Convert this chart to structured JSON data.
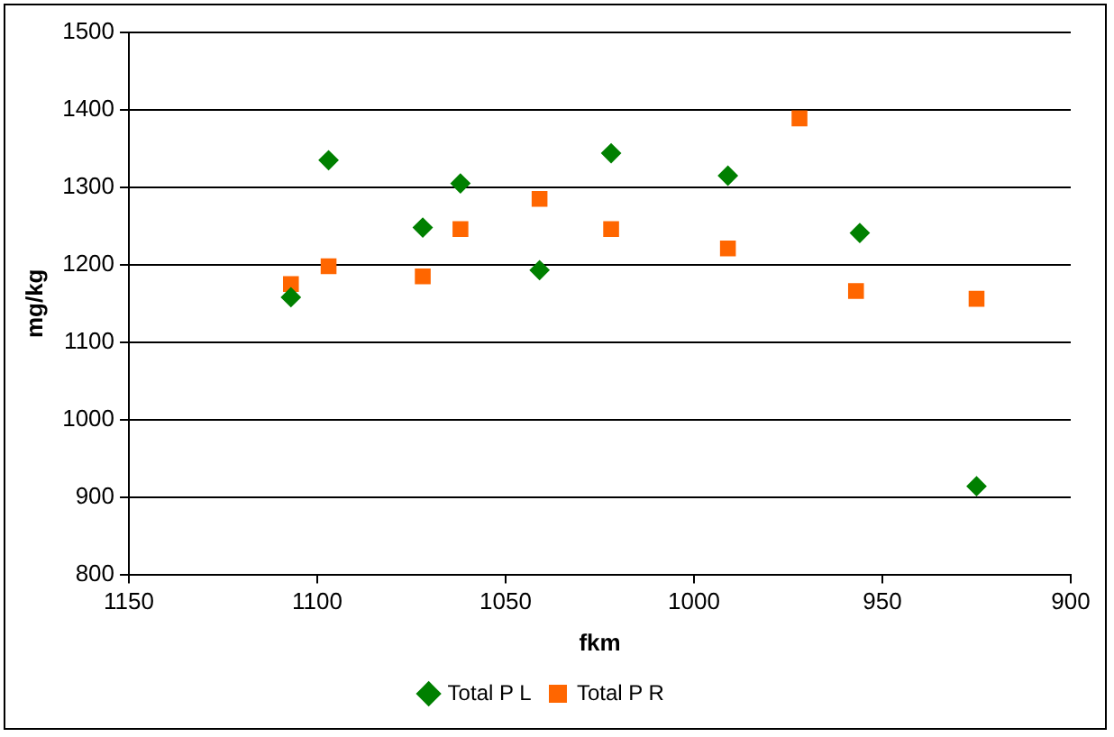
{
  "chart_data": {
    "type": "scatter",
    "xlabel": "fkm",
    "ylabel": "mg/kg",
    "xlim": [
      1150,
      900
    ],
    "xticks": [
      1150,
      1100,
      1050,
      1000,
      950,
      900
    ],
    "ylim": [
      800,
      1500
    ],
    "yticks": [
      800,
      900,
      1000,
      1100,
      1200,
      1300,
      1400,
      1500
    ],
    "grid": "y",
    "legend": "bottom",
    "series": [
      {
        "name": "Total P L",
        "color": "#008000",
        "marker": "diamond",
        "x": [
          1107,
          1097,
          1072,
          1062,
          1041,
          1022,
          991,
          956,
          925
        ],
        "values": [
          1158,
          1335,
          1248,
          1305,
          1193,
          1344,
          1315,
          1241,
          914
        ]
      },
      {
        "name": "Total P R",
        "color": "#ff6600",
        "marker": "square",
        "x": [
          1107,
          1097,
          1072,
          1062,
          1041,
          1022,
          991,
          972,
          957,
          925
        ],
        "values": [
          1175,
          1198,
          1185,
          1246,
          1285,
          1246,
          1221,
          1389,
          1166,
          1156
        ]
      }
    ]
  }
}
